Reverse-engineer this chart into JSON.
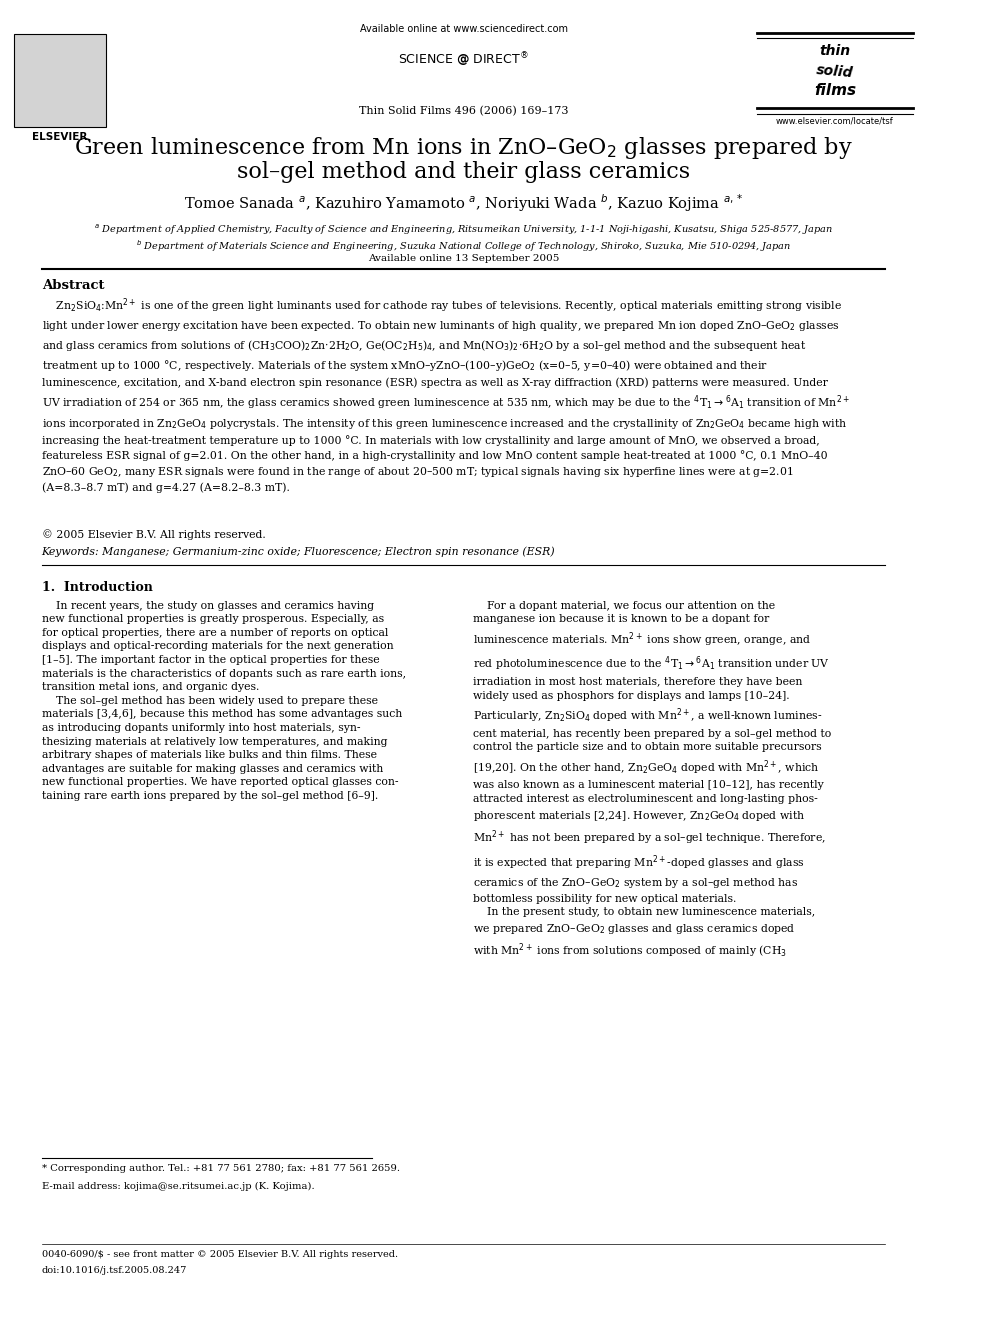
{
  "page_title": "Green luminescence from Mn ions in ZnO–GeO$_2$ glasses prepared by\nsol–gel method and their glass ceramics",
  "authors": "Tomoe Sanada $^a$, Kazuhiro Yamamoto $^a$, Noriyuki Wada $^b$, Kazuo Kojima $^{a,*}$",
  "affil_a": "$^a$ Department of Applied Chemistry, Faculty of Science and Engineering, Ritsumeikan University, 1-1-1 Noji-higashi, Kusatsu, Shiga 525-8577, Japan",
  "affil_b": "$^b$ Department of Materials Science and Engineering, Suzuka National College of Technology, Shiroko, Suzuka, Mie 510-0294, Japan",
  "available_online": "Available online 13 September 2005",
  "journal_line": "Thin Solid Films 496 (2006) 169–173",
  "available_web": "Available online at www.sciencedirect.com",
  "elsevier_url": "www.elsevier.com/locate/tsf",
  "abstract_title": "Abstract",
  "abstract_text": "    Zn$_2$SiO$_4$:Mn$^{2+}$ is one of the green light luminants used for cathode ray tubes of televisions. Recently, optical materials emitting strong visible light under lower energy excitation have been expected. To obtain new luminants of high quality, we prepared Mn ion doped ZnO–GeO$_2$ glasses and glass ceramics from solutions of (CH$_3$COO)$_2$Zn·2H$_2$O, Ge(OC$_2$H$_5$)$_4$, and Mn(NO$_3$)$_2$·6H$_2$O by a sol–gel method and the subsequent heat treatment up to 1000 °C, respectively. Materials of the system xMnO–yZnO–(100−y)GeO$_2$ (x=0–5, y=0–40) were obtained and their luminescence, excitation, and X-band electron spin resonance (ESR) spectra as well as X-ray diffraction (XRD) patterns were measured. Under UV irradiation of 254 or 365 nm, the glass ceramics showed green luminescence at 535 nm, which may be due to the $^4$T$_1$→$^6$A$_1$ transition of Mn$^{2+}$ ions incorporated in Zn$_2$GeO$_4$ polycrystals. The intensity of this green luminescence increased and the crystallinity of Zn$_2$GeO$_4$ became high with increasing the heat-treatment temperature up to 1000 °C. In materials with low crystallinity and large amount of MnO, we observed a broad, featureless ESR signal of g=2.01. On the other hand, in a high-crystallinity and low MnO content sample heat-treated at 1000 °C, 0.1 MnO–40 ZnO–60 GeO$_2$, many ESR signals were found in the range of about 20–500 mT; typical signals having six hyperfine lines were at g=2.01 (A=8.3–8.7 mT) and g=4.27 (A=8.2–8.3 mT).",
  "copyright": "© 2005 Elsevier B.V. All rights reserved.",
  "keywords": "Keywords: Manganese; Germanium-zinc oxide; Fluorescence; Electron spin resonance (ESR)",
  "section1_title": "1.  Introduction",
  "section1_left": "    In recent years, the study on glasses and ceramics having new functional properties is greatly prosperous. Especially, as for optical properties, there are a number of reports on optical displays and optical-recording materials for the next generation [1–5]. The important factor in the optical properties for these materials is the characteristics of dopants such as rare earth ions, transition metal ions, and organic dyes.\n    The sol–gel method has been widely used to prepare these materials [3,4,6], because this method has some advantages such as introducing dopants uniformly into host materials, synthesizing materials at relatively low temperatures, and making arbitrary shapes of materials like bulks and thin films. These advantages are suitable for making glasses and ceramics with new functional properties. We have reported optical glasses containing rare earth ions prepared by the sol–gel method [6–9].",
  "section1_right": "    For a dopant material, we focus our attention on the manganese ion because it is known to be a dopant for luminescence materials. Mn$^{2+}$ ions show green, orange, and red photoluminescence due to the $^4$T$_1$→$^6$A$_1$ transition under UV irradiation in most host materials, therefore they have been widely used as phosphors for displays and lamps [10–24]. Particularly, Zn$_2$SiO$_4$ doped with Mn$^{2+}$, a well-known luminescent material, has recently been prepared by a sol–gel method to control the particle size and to obtain more suitable precursors [19,20]. On the other hand, Zn$_2$GeO$_4$ doped with Mn$^{2+}$, which was also known as a luminescent material [10–12], has recently attracted interest as electroluminescent and long-lasting phosphorescent materials [2,24]. However, Zn$_2$GeO$_4$ doped with Mn$^{2+}$ has not been prepared by a sol–gel technique. Therefore, it is expected that preparing Mn$^{2+}$-doped glasses and glass ceramics of the ZnO–GeO$_2$ system by a sol–gel method has bottomless possibility for new optical materials.\n    In the present study, to obtain new luminescence materials, we prepared ZnO–GeO$_2$ glasses and glass ceramics doped with Mn$^{2+}$ ions from solutions composed of mainly (CH$_3$",
  "footnote_star": "* Corresponding author. Tel.: +81 77 561 2780; fax: +81 77 561 2659.",
  "footnote_email": "E-mail address: kojima@se.ritsumei.ac.jp (K. Kojima).",
  "footer_left": "0040-6090/$ - see front matter © 2005 Elsevier B.V. All rights reserved.",
  "footer_doi": "doi:10.1016/j.tsf.2005.08.247",
  "background_color": "#ffffff",
  "text_color": "#000000"
}
